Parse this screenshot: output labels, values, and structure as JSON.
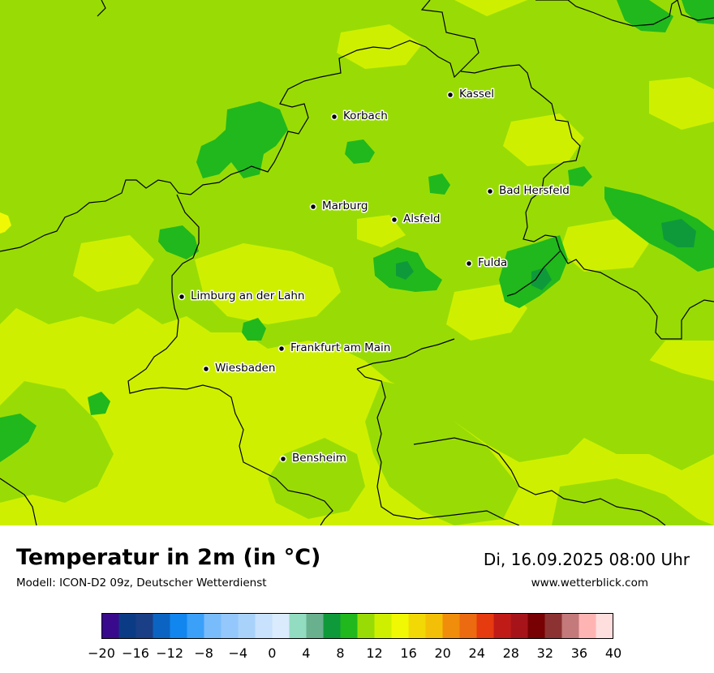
{
  "title": "Temperatur in 2m (in °C)",
  "model": "Modell: ICON-D2 09z, Deutscher Wetterdienst",
  "datetime": "Di, 16.09.2025 08:00 Uhr",
  "website": "www.wetterblick.com",
  "cities": [
    {
      "name": "Kassel"
    },
    {
      "name": "Korbach"
    },
    {
      "name": "Bad Hersfeld"
    },
    {
      "name": "Marburg"
    },
    {
      "name": "Alsfeld"
    },
    {
      "name": "Fulda"
    },
    {
      "name": "Limburg an der Lahn"
    },
    {
      "name": "Frankfurt am Main"
    },
    {
      "name": "Wiesbaden"
    },
    {
      "name": "Bensheim"
    }
  ],
  "legend": {
    "min": -20,
    "max": 40,
    "step": 2,
    "tick_labels": [
      "−20",
      "−16",
      "−12",
      "−8",
      "−4",
      "0",
      "4",
      "8",
      "12",
      "16",
      "20",
      "24",
      "28",
      "32",
      "36",
      "40"
    ],
    "colors": [
      "#3a0a8c",
      "#0c3b86",
      "#1a3f86",
      "#0b64c2",
      "#1186ee",
      "#3aa0f8",
      "#79bcfb",
      "#94c7fb",
      "#a9d2fb",
      "#c8e1fc",
      "#d9ebfd",
      "#92dcc1",
      "#69b08f",
      "#0e9a3a",
      "#20b81d",
      "#99dc05",
      "#cef000",
      "#f0f903",
      "#f2d906",
      "#f3c007",
      "#f08d0b",
      "#ec6a10",
      "#e63a0f",
      "#c11b18",
      "#a6141a",
      "#770103",
      "#8d3232",
      "#c47a7a",
      "#ffb4b4",
      "#ffdede"
    ]
  },
  "map_colors": {
    "c12_14": "#cef000",
    "c10_12": "#99dc05",
    "c8_10": "#20b81d",
    "c6_8": "#0e9a3a",
    "c14_16": "#f0f903",
    "border": "#000000"
  }
}
